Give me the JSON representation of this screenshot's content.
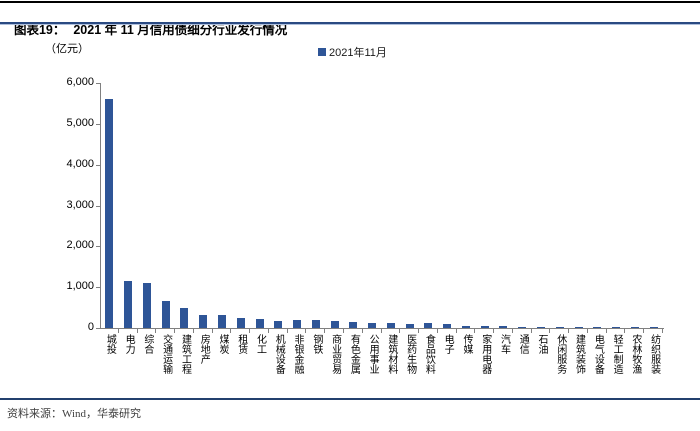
{
  "header": {
    "figure_label": "图表19：",
    "title": "2021 年 11 月信用债细分行业发行情况"
  },
  "chart_data": {
    "type": "bar",
    "title": "2021 年 11 月信用债细分行业发行情况",
    "unit_label": "（亿元）",
    "legend": "2021年11月",
    "legend_position": "top-center",
    "grid": false,
    "ylim": [
      0,
      6000
    ],
    "ytick_labels": [
      "0",
      "1,000",
      "2,000",
      "3,000",
      "4,000",
      "5,000",
      "6,000"
    ],
    "categories": [
      "城投",
      "电力",
      "综合",
      "交通运输",
      "建筑工程",
      "房地产",
      "煤炭",
      "租赁",
      "化工",
      "机械设备",
      "非银金融",
      "钢铁",
      "商业贸易",
      "有色金属",
      "公用事业",
      "建筑材料",
      "医药生物",
      "食品饮料",
      "电子",
      "传媒",
      "家用电器",
      "汽车",
      "通信",
      "石油",
      "休闲服务",
      "建筑装饰",
      "电气设备",
      "轻工制造",
      "农林牧渔",
      "纺织服装"
    ],
    "values": [
      5600,
      1150,
      1100,
      660,
      490,
      330,
      310,
      235,
      215,
      175,
      190,
      205,
      170,
      140,
      120,
      130,
      105,
      115,
      90,
      60,
      50,
      50,
      30,
      25,
      15,
      10,
      8,
      6,
      4,
      3
    ],
    "bar_color": "#2e5597",
    "axis_color": "#808080"
  },
  "footer": {
    "source": "资料来源：Wind，华泰研究"
  }
}
